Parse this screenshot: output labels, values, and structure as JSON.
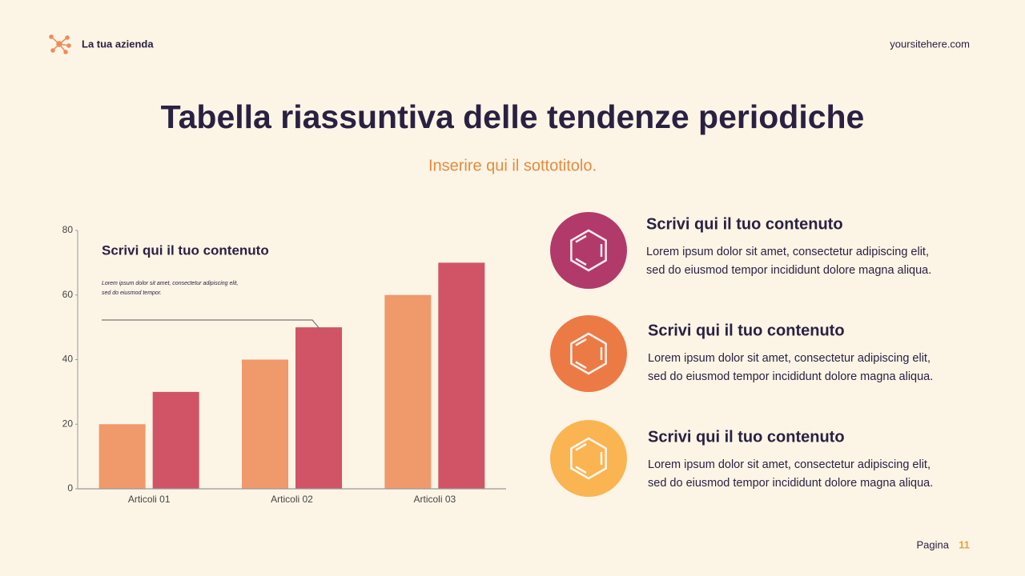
{
  "header": {
    "company": "La tua azienda",
    "website": "yoursitehere.com"
  },
  "title": "Tabella riassuntiva delle tendenze periodiche",
  "subtitle": "Inserire qui il sottotitolo.",
  "chart_data": {
    "type": "bar",
    "categories": [
      "Articoli 01",
      "Articoli 02",
      "Articoli 03"
    ],
    "series": [
      {
        "color": "#f0996b",
        "values": [
          20,
          40,
          60
        ]
      },
      {
        "color": "#d05466",
        "values": [
          30,
          50,
          70
        ]
      }
    ],
    "ylim": [
      0,
      80
    ],
    "yticks": [
      0,
      20,
      40,
      60,
      80
    ],
    "annotation": {
      "title": "Scrivi qui il tuo contenuto",
      "lines": [
        "Lorem ipsum dolor sit amet, consectetur adipiscing elit,",
        "sed do eiusmod tempor."
      ]
    }
  },
  "items": [
    {
      "heading": "Scrivi qui il tuo contenuto",
      "lines": [
        "Lorem ipsum dolor sit amet, consectetur adipiscing elit,",
        "sed do eiusmod tempor incididunt dolore magna aliqua."
      ]
    },
    {
      "heading": "Scrivi qui il tuo contenuto",
      "lines": [
        "Lorem ipsum dolor sit amet, consectetur adipiscing elit,",
        "sed do eiusmod tempor incididunt dolore magna aliqua."
      ]
    },
    {
      "heading": "Scrivi qui il tuo contenuto",
      "lines": [
        "Lorem ipsum dolor sit amet, consectetur adipiscing elit,",
        "sed do eiusmod tempor incididunt dolore magna aliqua."
      ]
    }
  ],
  "footer": {
    "label": "Pagina",
    "page": "11"
  }
}
